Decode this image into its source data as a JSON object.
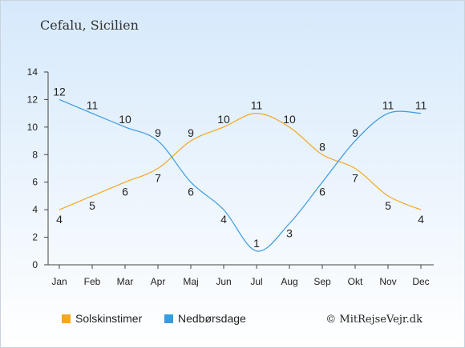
{
  "title": "Cefalu, Sicilien",
  "credit": "© MitRejseVejr.dk",
  "chart_data": {
    "type": "line",
    "categories": [
      "Jan",
      "Feb",
      "Mar",
      "Apr",
      "Maj",
      "Jun",
      "Jul",
      "Aug",
      "Sep",
      "Okt",
      "Nov",
      "Dec"
    ],
    "ylim": [
      0,
      14
    ],
    "yticks": [
      0,
      2,
      4,
      6,
      8,
      10,
      12,
      14
    ],
    "grid": false,
    "legend_position": "bottom",
    "series": [
      {
        "name": "Solskinstimer",
        "color": "#f5a623",
        "values": [
          4,
          5,
          6,
          7,
          9,
          10,
          11,
          10,
          8,
          7,
          5,
          4
        ]
      },
      {
        "name": "Nedbørsdage",
        "color": "#3a9ae0",
        "values": [
          12,
          11,
          10,
          9,
          6,
          4,
          1,
          3,
          6,
          9,
          11,
          11
        ]
      }
    ]
  }
}
